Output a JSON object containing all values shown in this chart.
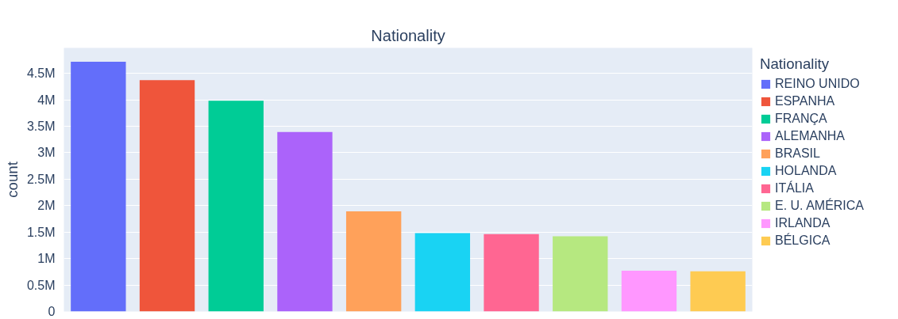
{
  "chart_data": {
    "type": "bar",
    "title": "Nationality",
    "ylabel": "count",
    "legend_title": "Nationality",
    "categories": [
      null,
      null,
      null,
      null,
      null,
      null,
      null,
      null,
      null,
      null
    ],
    "series": [
      {
        "name": "REINO UNIDO",
        "color": "#636efa",
        "values": [
          4720000,
          null,
          null,
          null,
          null,
          null,
          null,
          null,
          null,
          null
        ]
      },
      {
        "name": "ESPANHA",
        "color": "#ef553b",
        "values": [
          null,
          4370000,
          null,
          null,
          null,
          null,
          null,
          null,
          null,
          null
        ]
      },
      {
        "name": "FRANÇA",
        "color": "#00cc96",
        "values": [
          null,
          null,
          3980000,
          null,
          null,
          null,
          null,
          null,
          null,
          null
        ]
      },
      {
        "name": "ALEMANHA",
        "color": "#ab63fa",
        "values": [
          null,
          null,
          null,
          3390000,
          null,
          null,
          null,
          null,
          null,
          null
        ]
      },
      {
        "name": "BRASIL",
        "color": "#ffa15a",
        "values": [
          null,
          null,
          null,
          null,
          1890000,
          null,
          null,
          null,
          null,
          null
        ]
      },
      {
        "name": "HOLANDA",
        "color": "#19d3f3",
        "values": [
          null,
          null,
          null,
          null,
          null,
          1480000,
          null,
          null,
          null,
          null
        ]
      },
      {
        "name": "ITÁLIA",
        "color": "#ff6692",
        "values": [
          null,
          null,
          null,
          null,
          null,
          null,
          1460000,
          null,
          null,
          null
        ]
      },
      {
        "name": "E. U. AMÉRICA",
        "color": "#b6e880",
        "values": [
          null,
          null,
          null,
          null,
          null,
          null,
          null,
          1420000,
          null,
          null
        ]
      },
      {
        "name": "IRLANDA",
        "color": "#ff97ff",
        "values": [
          null,
          null,
          null,
          null,
          null,
          null,
          null,
          null,
          770000,
          null
        ]
      },
      {
        "name": "BÉLGICA",
        "color": "#fecb52",
        "values": [
          null,
          null,
          null,
          null,
          null,
          null,
          null,
          null,
          null,
          760000
        ]
      }
    ],
    "ylim": [
      0,
      4980000
    ],
    "yticks": [
      0,
      {
        "value": 500000,
        "label": "0.5M"
      },
      {
        "value": 1000000,
        "label": "1M"
      },
      {
        "value": 1500000,
        "label": "1.5M"
      },
      {
        "value": 2000000,
        "label": "2M"
      },
      {
        "value": 2500000,
        "label": "2.5M"
      },
      {
        "value": 3000000,
        "label": "3M"
      },
      {
        "value": 3500000,
        "label": "3.5M"
      },
      {
        "value": 4000000,
        "label": "4M"
      },
      {
        "value": 4500000,
        "label": "4.5M"
      }
    ],
    "grid": "y",
    "legend": "top right"
  }
}
